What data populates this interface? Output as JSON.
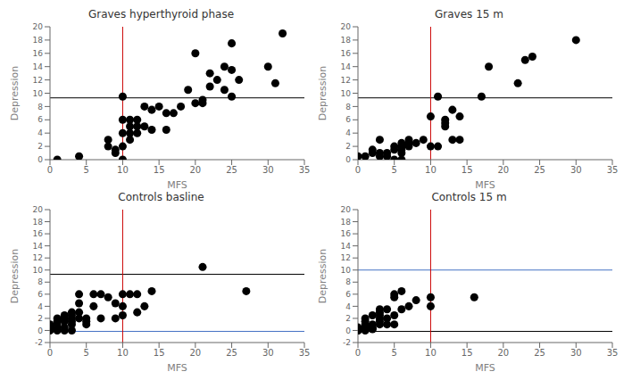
{
  "chart_data": [
    {
      "type": "scatter",
      "title": "Graves hyperthyroid phase",
      "x_label": "MFS",
      "y_label": "Depression",
      "color": "#000000",
      "x": [
        1,
        4,
        8,
        8,
        9,
        9,
        10,
        10,
        10,
        10,
        10,
        11,
        11,
        11,
        11,
        12,
        12,
        12,
        13,
        13,
        14,
        14,
        15,
        16,
        16,
        17,
        18,
        19,
        20,
        20,
        21,
        21,
        22,
        22,
        23,
        24,
        24,
        25,
        25,
        25,
        26,
        30,
        31,
        32
      ],
      "values": [
        0,
        0.5,
        3,
        2,
        1.5,
        1,
        0,
        6,
        4,
        2,
        9.5,
        6,
        4,
        5,
        3,
        5,
        6,
        4,
        8,
        5,
        4.5,
        7.5,
        8,
        4.5,
        7,
        7,
        8,
        10.5,
        8.5,
        16,
        8.5,
        9,
        11,
        13,
        12,
        10.5,
        14,
        17.5,
        9.5,
        13.5,
        12,
        14,
        11.5,
        19
      ],
      "hlines": [
        {
          "y": 9.3,
          "color": "#000000"
        }
      ],
      "vlines": [
        {
          "x": 10,
          "color": "#cc0000"
        }
      ],
      "xlim": [
        0,
        35
      ],
      "ylim": [
        0,
        20
      ],
      "xticks": [
        0,
        5,
        10,
        15,
        20,
        25,
        30,
        35
      ],
      "yticks": [
        0,
        2,
        4,
        6,
        8,
        10,
        12,
        14,
        16,
        18,
        20
      ]
    },
    {
      "type": "scatter",
      "title": "Graves 15 m",
      "x_label": "MFS",
      "y_label": "Depression",
      "color": "#000000",
      "x": [
        0,
        1,
        2,
        2,
        3,
        3,
        3,
        4,
        4,
        5,
        5,
        5,
        6,
        6,
        6,
        6,
        6,
        6,
        7,
        7,
        7,
        7,
        8,
        9,
        10,
        10,
        11,
        11,
        12,
        12,
        12,
        13,
        13,
        14,
        14,
        17,
        18,
        22,
        23,
        24,
        30
      ],
      "values": [
        0.5,
        0.5,
        1.5,
        1,
        3,
        1,
        0.5,
        0.5,
        1,
        0,
        1.5,
        2,
        2,
        2.5,
        2,
        1.5,
        1,
        0,
        2.5,
        2,
        3,
        2.5,
        2.5,
        3,
        6.5,
        2,
        2,
        9.5,
        6,
        5,
        5.5,
        7.5,
        3,
        3,
        6.5,
        9.5,
        14,
        11.5,
        15,
        15.5,
        18
      ],
      "hlines": [
        {
          "y": 9.3,
          "color": "#000000"
        }
      ],
      "vlines": [
        {
          "x": 10,
          "color": "#cc0000"
        }
      ],
      "xlim": [
        0,
        35
      ],
      "ylim": [
        0,
        20
      ],
      "xticks": [
        0,
        5,
        10,
        15,
        20,
        25,
        30,
        35
      ],
      "yticks": [
        0,
        2,
        4,
        6,
        8,
        10,
        12,
        14,
        16,
        18,
        20
      ]
    },
    {
      "type": "scatter",
      "title": "Controls basline",
      "x_label": "MFS",
      "y_label": "Depression",
      "color": "#000000",
      "x": [
        0,
        0,
        0,
        1,
        1,
        1,
        1,
        1,
        2,
        2,
        2,
        2,
        2,
        3,
        3,
        3,
        3,
        3,
        3,
        4,
        4,
        4,
        4,
        5,
        5,
        5,
        6,
        6,
        7,
        7,
        8,
        9,
        9,
        10,
        10,
        10,
        11,
        12,
        12,
        13,
        14,
        21,
        27
      ],
      "values": [
        0,
        1,
        0.5,
        1,
        0.5,
        2,
        1.5,
        0,
        0,
        2.5,
        1.5,
        2,
        0.5,
        3,
        2.5,
        2,
        1.5,
        0,
        1,
        4.5,
        3,
        2,
        6,
        1.5,
        2,
        1,
        6,
        4,
        6,
        2,
        5.5,
        4.5,
        2,
        2.5,
        4,
        6,
        6,
        3,
        6,
        4,
        6.5,
        10.5,
        6.5
      ],
      "hlines": [
        {
          "y": 9.3,
          "color": "#000000"
        },
        {
          "y": -0.15,
          "color": "#4472c4"
        }
      ],
      "vlines": [
        {
          "x": 10,
          "color": "#cc0000"
        }
      ],
      "xlim": [
        0,
        35
      ],
      "ylim": [
        -2,
        20
      ],
      "xticks": [
        0,
        5,
        10,
        15,
        20,
        25,
        30,
        35
      ],
      "yticks": [
        -2,
        0,
        2,
        4,
        6,
        8,
        10,
        12,
        14,
        16,
        18,
        20
      ]
    },
    {
      "type": "scatter",
      "title": "Controls 15 m",
      "x_label": "MFS",
      "y_label": "Depression",
      "color": "#000000",
      "x": [
        0,
        0,
        0,
        0,
        0,
        1,
        1,
        1,
        1,
        1,
        1,
        1,
        1,
        1,
        2,
        2,
        2,
        2,
        2,
        3,
        3,
        3,
        3,
        3,
        3,
        4,
        4,
        4,
        5,
        5,
        5,
        5,
        6,
        6,
        7,
        8,
        10,
        10,
        16
      ],
      "values": [
        0,
        0.2,
        0.5,
        0,
        0.3,
        0.5,
        0.3,
        1,
        0.2,
        0,
        0.7,
        1.5,
        2,
        0.1,
        1,
        0.5,
        0.3,
        2.5,
        0.2,
        2,
        1.5,
        3,
        2.5,
        1,
        3.5,
        2,
        3.5,
        1,
        6,
        5.5,
        1,
        2.5,
        6.5,
        3.5,
        4,
        5,
        5.5,
        4,
        5.5
      ],
      "hlines": [
        {
          "y": 10,
          "color": "#4472c4"
        },
        {
          "y": -0.15,
          "color": "#000000"
        }
      ],
      "vlines": [
        {
          "x": 10,
          "color": "#cc0000"
        }
      ],
      "xlim": [
        0,
        35
      ],
      "ylim": [
        -2,
        20
      ],
      "xticks": [
        0,
        5,
        10,
        15,
        20,
        25,
        30,
        35
      ],
      "yticks": [
        -2,
        0,
        2,
        4,
        6,
        8,
        10,
        12,
        14,
        16,
        18,
        20
      ]
    }
  ]
}
